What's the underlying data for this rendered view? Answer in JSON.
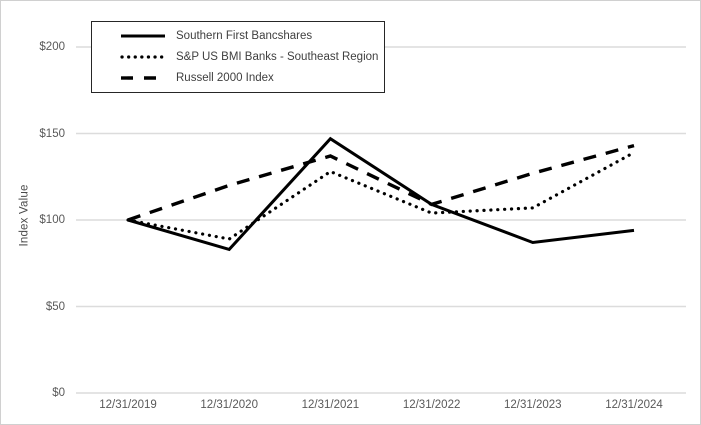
{
  "chart_data": {
    "type": "line",
    "title": "",
    "ylabel": "Index Value",
    "xlabel": "",
    "x_categories": [
      "12/31/2019",
      "12/31/2020",
      "12/31/2021",
      "12/31/2022",
      "12/31/2023",
      "12/31/2024"
    ],
    "series": [
      {
        "name": "Southern First Bancshares",
        "style": "solid",
        "values": [
          100,
          83,
          147,
          109,
          87,
          94
        ]
      },
      {
        "name": "S&P US BMI Banks - Southeast Region",
        "style": "dotted",
        "values": [
          100,
          89,
          128,
          104,
          107,
          139
        ]
      },
      {
        "name": "Russell 2000 Index",
        "style": "dashed",
        "values": [
          100,
          120,
          137,
          109,
          127,
          143
        ]
      }
    ],
    "yticks": [
      "$200",
      "$150",
      "$100",
      "$50",
      "$0"
    ],
    "ytick_values": [
      200,
      150,
      100,
      50,
      0
    ],
    "ylim": [
      0,
      200
    ],
    "grid": true,
    "legend_position": "top-left"
  },
  "colors": {
    "line": "#000000",
    "grid": "#dcdcdc",
    "axis_text": "#595959",
    "legend_border": "#262626",
    "background": "#ffffff"
  }
}
